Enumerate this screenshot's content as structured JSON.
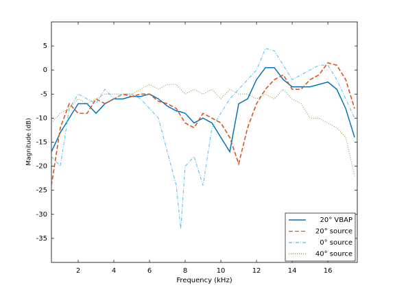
{
  "chart_data": {
    "type": "line",
    "xlabel": "Frequency (kHz)",
    "ylabel": "Magnitude (dB)",
    "xlim": [
      0.5,
      17.65
    ],
    "ylim": [
      -40,
      10
    ],
    "xticks": [
      2,
      4,
      6,
      8,
      10,
      12,
      14,
      16
    ],
    "yticks": [
      -35,
      -30,
      -25,
      -20,
      -15,
      -10,
      -5,
      0,
      5
    ],
    "legend": "lower right",
    "x": [
      0.5,
      1,
      1.5,
      2,
      2.5,
      3,
      3.5,
      4,
      4.5,
      5,
      5.5,
      6,
      6.5,
      7,
      7.5,
      7.75,
      8,
      8.5,
      9,
      9.5,
      10,
      10.5,
      11,
      11.5,
      12,
      12.5,
      13,
      13.5,
      14,
      14.5,
      15,
      15.5,
      16,
      16.5,
      17,
      17.5
    ],
    "series": [
      {
        "name": "20° VBAP",
        "color": "#0072bd",
        "dash": "solid",
        "values": [
          -17,
          -13,
          -10,
          -7,
          -7,
          -9,
          -7,
          -6,
          -6,
          -5.5,
          -5.5,
          -5,
          -6,
          -7.5,
          -8.5,
          -8.7,
          -9,
          -11,
          -10,
          -11,
          -14,
          -17,
          -7,
          -6,
          -2,
          0.5,
          0.5,
          -2,
          -3.5,
          -3.5,
          -3.5,
          -3,
          -2.5,
          -4,
          -8,
          -14
        ]
      },
      {
        "name": "20° source",
        "color": "#d95319",
        "dash": "dashed",
        "values": [
          -24,
          -12,
          -7,
          -9,
          -9,
          -6,
          -7,
          -6,
          -5,
          -5.5,
          -5,
          -5,
          -6.5,
          -7,
          -8,
          -9.5,
          -11,
          -12,
          -9,
          -10,
          -11,
          -14,
          -19.5,
          -12,
          -7,
          -4,
          -2,
          -1,
          -4,
          -4,
          -2,
          -1,
          1.5,
          1,
          -2,
          -8
        ]
      },
      {
        "name": "0° source",
        "color": "#4dbeee",
        "dash": "dashdot",
        "values": [
          -18,
          -20,
          -8,
          -5,
          -6,
          -7,
          -4,
          -6,
          -5,
          -5,
          -6,
          -8,
          -10,
          -17,
          -24,
          -33,
          -20,
          -18,
          -24,
          -12,
          -9,
          -6,
          -4,
          -2,
          0,
          4.5,
          4,
          1,
          -2,
          -1,
          0,
          1,
          1,
          -2,
          -6,
          -10
        ]
      },
      {
        "name": "40° source",
        "color": "#8a8a3a",
        "dash": "dotted",
        "values": [
          -11,
          -9,
          -8,
          -6,
          -7,
          -6,
          -5,
          -5,
          -5,
          -5,
          -4,
          -3,
          -4,
          -3,
          -3,
          -4,
          -5,
          -4,
          -5,
          -4,
          -6,
          -4,
          -5,
          -5,
          -6,
          -5,
          -6,
          -4,
          -6,
          -7,
          -10,
          -10,
          -11,
          -12,
          -14,
          -22
        ]
      }
    ]
  }
}
